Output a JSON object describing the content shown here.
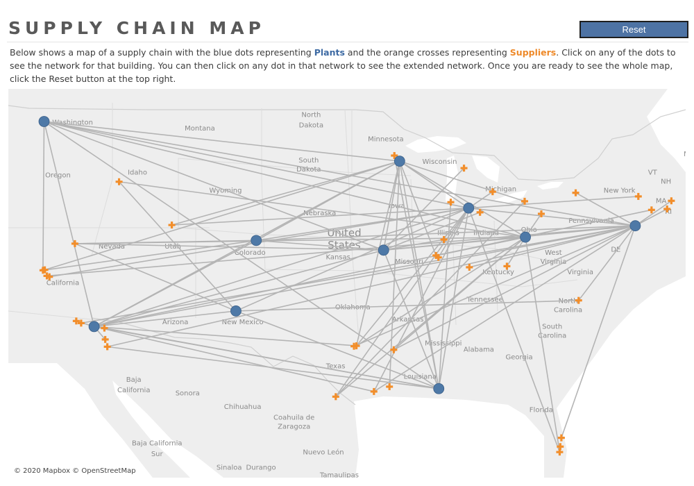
{
  "header": {
    "title": "SUPPLY CHAIN MAP",
    "reset_label": "Reset"
  },
  "description": {
    "part1": "Below shows a map of a supply chain with the blue dots representing ",
    "plants_word": "Plants",
    "part2": " and the orange crosses representing ",
    "suppliers_word": "Suppliers",
    "part3": ". Click on any of the dots to see the network for that building. You can then click on any dot in that network to see the extended network. Once you are ready to see the whole map, click the Reset button at the top right."
  },
  "colors": {
    "plant": "#4e79a7",
    "supplier": "#f28e2b",
    "route": "#b4b4b4",
    "land": "#eeeeee",
    "water": "#ffffff",
    "accent": "#4e73a4"
  },
  "map": {
    "attribution": "© 2020 Mapbox © OpenStreetMap",
    "labels": [
      {
        "id": "washington",
        "text": "Washington",
        "lon": -120.0,
        "lat": 47.4
      },
      {
        "id": "montana",
        "text": "Montana",
        "lon": -109.6,
        "lat": 47.0
      },
      {
        "id": "north-dakota-1",
        "text": "North",
        "lon": -100.5,
        "lat": 47.9
      },
      {
        "id": "north-dakota-2",
        "text": "Dakota",
        "lon": -100.5,
        "lat": 47.2
      },
      {
        "id": "minnesota",
        "text": "Minnesota",
        "lon": -94.4,
        "lat": 46.3
      },
      {
        "id": "maine",
        "text": "Maine",
        "lon": -69.2,
        "lat": 45.3
      },
      {
        "id": "oregon",
        "text": "Oregon",
        "lon": -121.2,
        "lat": 43.9
      },
      {
        "id": "idaho",
        "text": "Idaho",
        "lon": -114.7,
        "lat": 44.1
      },
      {
        "id": "south-dakota-1",
        "text": "South",
        "lon": -100.7,
        "lat": 44.9
      },
      {
        "id": "south-dakota-2",
        "text": "Dakota",
        "lon": -100.7,
        "lat": 44.3
      },
      {
        "id": "wisconsin",
        "text": "Wisconsin",
        "lon": -90.0,
        "lat": 44.8
      },
      {
        "id": "vt",
        "text": "VT",
        "lon": -72.6,
        "lat": 44.1
      },
      {
        "id": "nh",
        "text": "NH",
        "lon": -71.5,
        "lat": 43.5
      },
      {
        "id": "wyoming",
        "text": "Wyoming",
        "lon": -107.5,
        "lat": 42.9
      },
      {
        "id": "michigan",
        "text": "Michigan",
        "lon": -85.0,
        "lat": 43.0
      },
      {
        "id": "new-york",
        "text": "New York",
        "lon": -75.3,
        "lat": 42.9
      },
      {
        "id": "ma",
        "text": "MA",
        "lon": -71.9,
        "lat": 42.2
      },
      {
        "id": "iowa",
        "text": "Iowa",
        "lon": -93.5,
        "lat": 41.9
      },
      {
        "id": "nebraska",
        "text": "Nebraska",
        "lon": -99.8,
        "lat": 41.4
      },
      {
        "id": "ri",
        "text": "RI",
        "lon": -71.3,
        "lat": 41.5
      },
      {
        "id": "pennsylvania",
        "text": "Pennsylvania",
        "lon": -77.6,
        "lat": 40.9
      },
      {
        "id": "nevada",
        "text": "Nevada",
        "lon": -116.8,
        "lat": 39.2
      },
      {
        "id": "utah",
        "text": "Utah",
        "lon": -111.8,
        "lat": 39.2
      },
      {
        "id": "colorado",
        "text": "Colorado",
        "lon": -105.5,
        "lat": 38.8
      },
      {
        "id": "illinois",
        "text": "Illinois",
        "lon": -89.3,
        "lat": 40.1
      },
      {
        "id": "indiana",
        "text": "Indiana",
        "lon": -86.2,
        "lat": 40.1
      },
      {
        "id": "ohio",
        "text": "Ohio",
        "lon": -82.7,
        "lat": 40.3
      },
      {
        "id": "kansas",
        "text": "Kansas",
        "lon": -98.3,
        "lat": 38.5
      },
      {
        "id": "missouri",
        "text": "Missouri",
        "lon": -92.5,
        "lat": 38.2
      },
      {
        "id": "west-virginia-1",
        "text": "West",
        "lon": -80.7,
        "lat": 38.8
      },
      {
        "id": "west-virginia-2",
        "text": "Virginia",
        "lon": -80.7,
        "lat": 38.2
      },
      {
        "id": "de",
        "text": "DE",
        "lon": -75.6,
        "lat": 39.0
      },
      {
        "id": "california",
        "text": "California",
        "lon": -120.8,
        "lat": 36.8
      },
      {
        "id": "kentucky",
        "text": "Kentucky",
        "lon": -85.2,
        "lat": 37.5
      },
      {
        "id": "virginia",
        "text": "Virginia",
        "lon": -78.5,
        "lat": 37.5
      },
      {
        "id": "oklahoma",
        "text": "Oklahoma",
        "lon": -97.1,
        "lat": 35.2
      },
      {
        "id": "tennessee",
        "text": "Tennessee",
        "lon": -86.3,
        "lat": 35.7
      },
      {
        "id": "north-carolina-1",
        "text": "North",
        "lon": -79.5,
        "lat": 35.6
      },
      {
        "id": "north-carolina-2",
        "text": "Carolina",
        "lon": -79.5,
        "lat": 35.0
      },
      {
        "id": "arizona",
        "text": "Arizona",
        "lon": -111.6,
        "lat": 34.2
      },
      {
        "id": "new-mexico",
        "text": "New Mexico",
        "lon": -106.1,
        "lat": 34.2
      },
      {
        "id": "arkansas",
        "text": "Arkansas",
        "lon": -92.6,
        "lat": 34.4
      },
      {
        "id": "south-carolina-1",
        "text": "South",
        "lon": -80.8,
        "lat": 33.9
      },
      {
        "id": "south-carolina-2",
        "text": "Carolina",
        "lon": -80.8,
        "lat": 33.3
      },
      {
        "id": "mississippi",
        "text": "Mississippi",
        "lon": -89.7,
        "lat": 32.8
      },
      {
        "id": "alabama",
        "text": "Alabama",
        "lon": -86.8,
        "lat": 32.4
      },
      {
        "id": "georgia",
        "text": "Georgia",
        "lon": -83.5,
        "lat": 31.9
      },
      {
        "id": "texas",
        "text": "Texas",
        "lon": -98.5,
        "lat": 31.3
      },
      {
        "id": "louisiana",
        "text": "Louisiana",
        "lon": -91.6,
        "lat": 30.6
      },
      {
        "id": "baja-california-1",
        "text": "Baja",
        "lon": -115.0,
        "lat": 30.4
      },
      {
        "id": "baja-california-2",
        "text": "California",
        "lon": -115.0,
        "lat": 29.7
      },
      {
        "id": "sonora",
        "text": "Sonora",
        "lon": -110.6,
        "lat": 29.5
      },
      {
        "id": "chihuahua",
        "text": "Chihuahua",
        "lon": -106.1,
        "lat": 28.6
      },
      {
        "id": "coahuila-1",
        "text": "Coahuila de",
        "lon": -101.9,
        "lat": 27.9
      },
      {
        "id": "coahuila-2",
        "text": "Zaragoza",
        "lon": -101.9,
        "lat": 27.3
      },
      {
        "id": "florida",
        "text": "Florida",
        "lon": -81.7,
        "lat": 28.4
      },
      {
        "id": "baja-california-sur-1",
        "text": "Baja California",
        "lon": -113.1,
        "lat": 26.2
      },
      {
        "id": "baja-california-sur-2",
        "text": "Sur",
        "lon": -113.1,
        "lat": 25.5
      },
      {
        "id": "nuevo-leon",
        "text": "Nuevo León",
        "lon": -99.5,
        "lat": 25.6
      },
      {
        "id": "sinaloa",
        "text": "Sinaloa",
        "lon": -107.2,
        "lat": 24.6
      },
      {
        "id": "durango",
        "text": "Durango",
        "lon": -104.6,
        "lat": 24.6
      },
      {
        "id": "tamaulipas",
        "text": "Tamaulipas",
        "lon": -98.2,
        "lat": 24.1
      }
    ],
    "country_label_1": {
      "text": "United",
      "lon": -97.8,
      "lat": 40.0
    },
    "country_label_2": {
      "text": "States",
      "lon": -97.8,
      "lat": 39.2
    }
  },
  "plants": [
    {
      "id": "seattle",
      "lon": -122.33,
      "lat": 47.6
    },
    {
      "id": "minneapolis",
      "lon": -93.27,
      "lat": 44.98
    },
    {
      "id": "denver",
      "lon": -104.99,
      "lat": 39.74
    },
    {
      "id": "chicago",
      "lon": -87.63,
      "lat": 41.88
    },
    {
      "id": "kansas-city",
      "lon": -94.58,
      "lat": 39.1
    },
    {
      "id": "columbus",
      "lon": -82.99,
      "lat": 39.96
    },
    {
      "id": "new-york-city",
      "lon": -74.01,
      "lat": 40.71
    },
    {
      "id": "los-angeles",
      "lon": -118.24,
      "lat": 34.05
    },
    {
      "id": "albuquerque",
      "lon": -106.65,
      "lat": 35.08
    },
    {
      "id": "new-orleans",
      "lon": -90.07,
      "lat": 29.95
    }
  ],
  "suppliers": [
    {
      "id": "boise",
      "lon": -116.2,
      "lat": 43.62
    },
    {
      "id": "salt-lake-city",
      "lon": -111.89,
      "lat": 40.76
    },
    {
      "id": "reno",
      "lon": -119.81,
      "lat": 39.53
    },
    {
      "id": "bay-area-1",
      "lon": -122.42,
      "lat": 37.77
    },
    {
      "id": "bay-area-2",
      "lon": -122.27,
      "lat": 37.8
    },
    {
      "id": "bay-area-3",
      "lon": -121.89,
      "lat": 37.34
    },
    {
      "id": "bay-area-4",
      "lon": -122.1,
      "lat": 37.4
    },
    {
      "id": "santa-barbara",
      "lon": -119.7,
      "lat": 34.42
    },
    {
      "id": "ventura",
      "lon": -119.3,
      "lat": 34.28
    },
    {
      "id": "san-diego",
      "lon": -117.16,
      "lat": 32.72
    },
    {
      "id": "riverside",
      "lon": -117.4,
      "lat": 33.95
    },
    {
      "id": "oceanside",
      "lon": -117.33,
      "lat": 33.2
    },
    {
      "id": "st-paul",
      "lon": -93.7,
      "lat": 45.35
    },
    {
      "id": "green-bay",
      "lon": -88.01,
      "lat": 44.52
    },
    {
      "id": "grand-rapids",
      "lon": -85.67,
      "lat": 42.96
    },
    {
      "id": "detroit",
      "lon": -83.05,
      "lat": 42.33
    },
    {
      "id": "rockford",
      "lon": -89.09,
      "lat": 42.27
    },
    {
      "id": "gary",
      "lon": -86.7,
      "lat": 41.6
    },
    {
      "id": "springfield",
      "lon": -89.65,
      "lat": 39.8
    },
    {
      "id": "st-louis-1",
      "lon": -90.3,
      "lat": 38.75
    },
    {
      "id": "st-louis-2",
      "lon": -90.1,
      "lat": 38.62
    },
    {
      "id": "cleveland",
      "lon": -81.69,
      "lat": 41.5
    },
    {
      "id": "buffalo",
      "lon": -78.88,
      "lat": 42.89
    },
    {
      "id": "albany",
      "lon": -73.76,
      "lat": 42.65
    },
    {
      "id": "boston",
      "lon": -71.06,
      "lat": 42.36
    },
    {
      "id": "providence",
      "lon": -71.41,
      "lat": 41.82
    },
    {
      "id": "hartford",
      "lon": -72.68,
      "lat": 41.76
    },
    {
      "id": "evansville",
      "lon": -87.57,
      "lat": 37.97
    },
    {
      "id": "lexington",
      "lon": -84.5,
      "lat": 38.04
    },
    {
      "id": "raleigh",
      "lon": -78.64,
      "lat": 35.78
    },
    {
      "id": "dallas",
      "lon": -96.8,
      "lat": 32.78
    },
    {
      "id": "fort-worth",
      "lon": -97.0,
      "lat": 32.75
    },
    {
      "id": "shreveport",
      "lon": -93.75,
      "lat": 32.52
    },
    {
      "id": "san-antonio",
      "lon": -98.49,
      "lat": 29.42
    },
    {
      "id": "houston",
      "lon": -95.37,
      "lat": 29.76
    },
    {
      "id": "beaumont",
      "lon": -94.1,
      "lat": 30.08
    },
    {
      "id": "miami",
      "lon": -80.19,
      "lat": 25.76
    },
    {
      "id": "fort-lauderdale",
      "lon": -80.14,
      "lat": 26.12
    },
    {
      "id": "west-palm",
      "lon": -80.05,
      "lat": 26.7
    }
  ],
  "routes": [
    [
      "seattle",
      "minneapolis"
    ],
    [
      "seattle",
      "chicago"
    ],
    [
      "seattle",
      "columbus"
    ],
    [
      "seattle",
      "kansas-city"
    ],
    [
      "seattle",
      "los-angeles"
    ],
    [
      "seattle",
      "bay-area-1"
    ],
    [
      "seattle",
      "new-york-city"
    ],
    [
      "seattle",
      "new-orleans"
    ],
    [
      "minneapolis",
      "denver"
    ],
    [
      "minneapolis",
      "chicago"
    ],
    [
      "minneapolis",
      "columbus"
    ],
    [
      "minneapolis",
      "los-angeles"
    ],
    [
      "minneapolis",
      "new-orleans"
    ],
    [
      "minneapolis",
      "bay-area-2"
    ],
    [
      "minneapolis",
      "salt-lake-city"
    ],
    [
      "minneapolis",
      "dallas"
    ],
    [
      "minneapolis",
      "detroit"
    ],
    [
      "minneapolis",
      "st-louis-1"
    ],
    [
      "minneapolis",
      "kansas-city"
    ],
    [
      "chicago",
      "denver"
    ],
    [
      "chicago",
      "los-angeles"
    ],
    [
      "chicago",
      "bay-area-3"
    ],
    [
      "chicago",
      "new-orleans"
    ],
    [
      "chicago",
      "st-louis-2"
    ],
    [
      "chicago",
      "albuquerque"
    ],
    [
      "chicago",
      "san-antonio"
    ],
    [
      "chicago",
      "houston"
    ],
    [
      "chicago",
      "new-york-city"
    ],
    [
      "chicago",
      "grand-rapids"
    ],
    [
      "chicago",
      "miami"
    ],
    [
      "kansas-city",
      "los-angeles"
    ],
    [
      "kansas-city",
      "denver"
    ],
    [
      "kansas-city",
      "springfield"
    ],
    [
      "kansas-city",
      "gary"
    ],
    [
      "kansas-city",
      "new-orleans"
    ],
    [
      "kansas-city",
      "columbus"
    ],
    [
      "kansas-city",
      "reno"
    ],
    [
      "columbus",
      "los-angeles"
    ],
    [
      "columbus",
      "reno"
    ],
    [
      "columbus",
      "st-louis-1"
    ],
    [
      "columbus",
      "dallas"
    ],
    [
      "columbus",
      "shreveport"
    ],
    [
      "columbus",
      "lexington"
    ],
    [
      "columbus",
      "miami"
    ],
    [
      "columbus",
      "cleveland"
    ],
    [
      "new-york-city",
      "los-angeles"
    ],
    [
      "new-york-city",
      "ventura"
    ],
    [
      "new-york-city",
      "bay-area-4"
    ],
    [
      "new-york-city",
      "denver"
    ],
    [
      "new-york-city",
      "kansas-city"
    ],
    [
      "new-york-city",
      "san-diego"
    ],
    [
      "new-york-city",
      "shreveport"
    ],
    [
      "new-york-city",
      "fort-worth"
    ],
    [
      "new-york-city",
      "evansville"
    ],
    [
      "new-york-city",
      "west-palm"
    ],
    [
      "new-york-city",
      "boston"
    ],
    [
      "new-york-city",
      "raleigh"
    ],
    [
      "new-york-city",
      "buffalo"
    ],
    [
      "los-angeles",
      "denver"
    ],
    [
      "los-angeles",
      "albuquerque"
    ],
    [
      "los-angeles",
      "new-orleans"
    ],
    [
      "los-angeles",
      "houston"
    ],
    [
      "los-angeles",
      "santa-barbara"
    ],
    [
      "los-angeles",
      "oceanside"
    ],
    [
      "los-angeles",
      "riverside"
    ],
    [
      "los-angeles",
      "dallas"
    ],
    [
      "denver",
      "reno"
    ],
    [
      "denver",
      "bay-area-1"
    ],
    [
      "albuquerque",
      "reno"
    ],
    [
      "albuquerque",
      "boise"
    ],
    [
      "albuquerque",
      "new-orleans"
    ],
    [
      "albuquerque",
      "raleigh"
    ],
    [
      "new-orleans",
      "st-paul"
    ],
    [
      "new-orleans",
      "riverside"
    ],
    [
      "new-orleans",
      "san-diego"
    ],
    [
      "san-antonio",
      "columbus"
    ],
    [
      "san-antonio",
      "detroit"
    ],
    [
      "houston",
      "new-york-city"
    ],
    [
      "dallas",
      "chicago"
    ],
    [
      "boise",
      "columbus"
    ],
    [
      "salt-lake-city",
      "chicago"
    ],
    [
      "green-bay",
      "kansas-city"
    ],
    [
      "hartford",
      "st-louis-1"
    ],
    [
      "rockford",
      "new-orleans"
    ],
    [
      "albany",
      "chicago"
    ],
    [
      "providence",
      "new-york-city"
    ],
    [
      "beaumont",
      "minneapolis"
    ]
  ]
}
